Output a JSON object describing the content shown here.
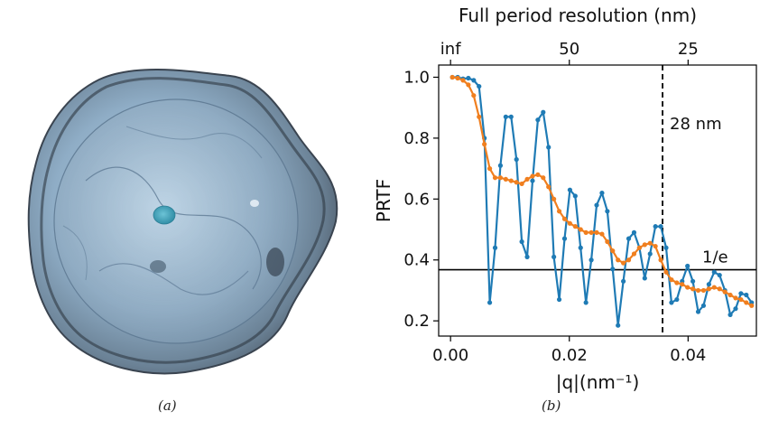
{
  "panels": {
    "a": {
      "label": "(a)"
    },
    "b": {
      "label": "(b)"
    }
  },
  "colors": {
    "series_blue": "#1f7bb5",
    "series_orange": "#f07f1f",
    "axis": "#000000",
    "shell_outer": "#4a5663",
    "shell_inner": "#9fbdd6",
    "core": "#3a9fb8"
  },
  "chart_data": {
    "type": "line",
    "title": "",
    "xlabel": "|q|(nm⁻¹)",
    "ylabel": "PRTF",
    "secondary_xlabel": "Full period resolution (nm)",
    "xlim": [
      -0.002,
      0.0515
    ],
    "ylim": [
      0.15,
      1.04
    ],
    "x_ticks": [
      0.0,
      0.02,
      0.04
    ],
    "x_tick_labels": [
      "0.00",
      "0.02",
      "0.04"
    ],
    "y_ticks": [
      0.2,
      0.4,
      0.6,
      0.8,
      1.0
    ],
    "y_tick_labels": [
      "0.2",
      "0.4",
      "0.6",
      "0.8",
      "1.0"
    ],
    "top_ticks": [
      0.0,
      0.02,
      0.04
    ],
    "top_tick_labels": [
      "inf",
      "50",
      "25"
    ],
    "hline": {
      "y": 0.3679,
      "label": "1/e"
    },
    "vline": {
      "x": 0.0357,
      "label": "28 nm"
    },
    "series": [
      {
        "color": "#1f7bb5",
        "points": [
          [
            0.0003,
            1.0
          ],
          [
            0.0012,
            1.0
          ],
          [
            0.0021,
            0.995
          ],
          [
            0.003,
            0.997
          ],
          [
            0.0039,
            0.99
          ],
          [
            0.0048,
            0.97
          ],
          [
            0.0057,
            0.8
          ],
          [
            0.0066,
            0.26
          ],
          [
            0.0075,
            0.44
          ],
          [
            0.0084,
            0.71
          ],
          [
            0.0093,
            0.87
          ],
          [
            0.0102,
            0.87
          ],
          [
            0.0111,
            0.73
          ],
          [
            0.012,
            0.46
          ],
          [
            0.0129,
            0.41
          ],
          [
            0.0138,
            0.66
          ],
          [
            0.0147,
            0.86
          ],
          [
            0.0156,
            0.885
          ],
          [
            0.0165,
            0.77
          ],
          [
            0.0174,
            0.41
          ],
          [
            0.0183,
            0.27
          ],
          [
            0.0192,
            0.47
          ],
          [
            0.0201,
            0.63
          ],
          [
            0.021,
            0.61
          ],
          [
            0.0219,
            0.44
          ],
          [
            0.0228,
            0.26
          ],
          [
            0.0237,
            0.4
          ],
          [
            0.0246,
            0.58
          ],
          [
            0.0255,
            0.62
          ],
          [
            0.0264,
            0.56
          ],
          [
            0.0273,
            0.37
          ],
          [
            0.0282,
            0.185
          ],
          [
            0.0291,
            0.33
          ],
          [
            0.03,
            0.47
          ],
          [
            0.0309,
            0.49
          ],
          [
            0.0318,
            0.44
          ],
          [
            0.0327,
            0.34
          ],
          [
            0.0336,
            0.42
          ],
          [
            0.0345,
            0.51
          ],
          [
            0.0354,
            0.51
          ],
          [
            0.0363,
            0.44
          ],
          [
            0.0372,
            0.26
          ],
          [
            0.0381,
            0.27
          ],
          [
            0.039,
            0.33
          ],
          [
            0.0399,
            0.38
          ],
          [
            0.0408,
            0.33
          ],
          [
            0.0417,
            0.23
          ],
          [
            0.0426,
            0.25
          ],
          [
            0.0435,
            0.32
          ],
          [
            0.0444,
            0.36
          ],
          [
            0.0453,
            0.35
          ],
          [
            0.0462,
            0.3
          ],
          [
            0.0471,
            0.22
          ],
          [
            0.048,
            0.24
          ],
          [
            0.0489,
            0.29
          ],
          [
            0.0498,
            0.285
          ],
          [
            0.0507,
            0.26
          ]
        ]
      },
      {
        "color": "#f07f1f",
        "points": [
          [
            0.0003,
            1.0
          ],
          [
            0.0012,
            0.997
          ],
          [
            0.0021,
            0.99
          ],
          [
            0.003,
            0.975
          ],
          [
            0.0039,
            0.94
          ],
          [
            0.0048,
            0.87
          ],
          [
            0.0057,
            0.78
          ],
          [
            0.0066,
            0.7
          ],
          [
            0.0075,
            0.67
          ],
          [
            0.0084,
            0.67
          ],
          [
            0.0093,
            0.665
          ],
          [
            0.0102,
            0.66
          ],
          [
            0.0111,
            0.655
          ],
          [
            0.012,
            0.65
          ],
          [
            0.0129,
            0.665
          ],
          [
            0.0138,
            0.675
          ],
          [
            0.0147,
            0.68
          ],
          [
            0.0156,
            0.67
          ],
          [
            0.0165,
            0.64
          ],
          [
            0.0174,
            0.6
          ],
          [
            0.0183,
            0.56
          ],
          [
            0.0192,
            0.535
          ],
          [
            0.0201,
            0.52
          ],
          [
            0.021,
            0.51
          ],
          [
            0.0219,
            0.5
          ],
          [
            0.0228,
            0.49
          ],
          [
            0.0237,
            0.49
          ],
          [
            0.0246,
            0.49
          ],
          [
            0.0255,
            0.485
          ],
          [
            0.0264,
            0.46
          ],
          [
            0.0273,
            0.43
          ],
          [
            0.0282,
            0.4
          ],
          [
            0.0291,
            0.39
          ],
          [
            0.03,
            0.4
          ],
          [
            0.0309,
            0.42
          ],
          [
            0.0318,
            0.44
          ],
          [
            0.0327,
            0.45
          ],
          [
            0.0336,
            0.455
          ],
          [
            0.0345,
            0.445
          ],
          [
            0.0354,
            0.4
          ],
          [
            0.0363,
            0.36
          ],
          [
            0.0372,
            0.335
          ],
          [
            0.0381,
            0.325
          ],
          [
            0.039,
            0.32
          ],
          [
            0.0399,
            0.31
          ],
          [
            0.0408,
            0.305
          ],
          [
            0.0417,
            0.3
          ],
          [
            0.0426,
            0.3
          ],
          [
            0.0435,
            0.305
          ],
          [
            0.0444,
            0.31
          ],
          [
            0.0453,
            0.305
          ],
          [
            0.0462,
            0.295
          ],
          [
            0.0471,
            0.285
          ],
          [
            0.048,
            0.275
          ],
          [
            0.0489,
            0.27
          ],
          [
            0.0498,
            0.26
          ],
          [
            0.0507,
            0.25
          ]
        ]
      }
    ]
  }
}
